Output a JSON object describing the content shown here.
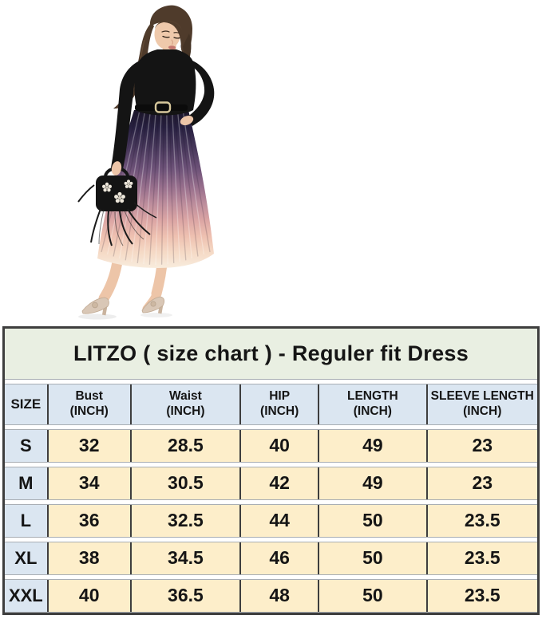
{
  "chart_data": {
    "type": "table",
    "title": "LITZO ( size chart ) - Reguler fit Dress",
    "columns": [
      "SIZE",
      "Bust (INCH)",
      "Waist (INCH)",
      "HIP (INCH)",
      "LENGTH (INCH)",
      "SLEEVE LENGTH (INCH)"
    ],
    "rows": [
      [
        "S",
        "32",
        "28.5",
        "40",
        "49",
        "23"
      ],
      [
        "M",
        "34",
        "30.5",
        "42",
        "49",
        "23"
      ],
      [
        "L",
        "36",
        "32.5",
        "44",
        "50",
        "23.5"
      ],
      [
        "XL",
        "38",
        "34.5",
        "46",
        "50",
        "23.5"
      ],
      [
        "XXL",
        "40",
        "36.5",
        "48",
        "50",
        "23.5"
      ]
    ]
  },
  "size_chart": {
    "title": "LITZO ( size chart ) - Reguler fit Dress",
    "headers": [
      {
        "label": "SIZE",
        "sub": ""
      },
      {
        "label": "Bust",
        "sub": "(INCH)"
      },
      {
        "label": "Waist",
        "sub": "(INCH)"
      },
      {
        "label": "HIP",
        "sub": "(INCH)"
      },
      {
        "label": "LENGTH",
        "sub": "(INCH)"
      },
      {
        "label": "SLEEVE LENGTH",
        "sub": "(INCH)"
      }
    ]
  },
  "photo": {
    "description": "Model in fitted black long-sleeve top and ombre pleated midi skirt fading black to purple to pink to cream, thin black belt, holding a black ostrich-feather clutch with crystal flowers, champagne bow heels"
  },
  "colors": {
    "title_bg": "#e9efe2",
    "header_bg": "#dbe6f1",
    "cell_bg": "#fdeeca",
    "border_dark": "#3e3e3e",
    "row_gap_line": "#a9aeb4",
    "text": "#151515",
    "skirt_gradient": [
      "#1a1526",
      "#272040",
      "#453659",
      "#6d5278",
      "#99708d",
      "#bd8d9c",
      "#dba5a4",
      "#eec0b0",
      "#f5d9c5",
      "#f8ecdd"
    ],
    "top_color": "#141414",
    "skin": "#edc5a8",
    "hair": "#4f3b2b",
    "shoe": "#d9c7b6"
  }
}
